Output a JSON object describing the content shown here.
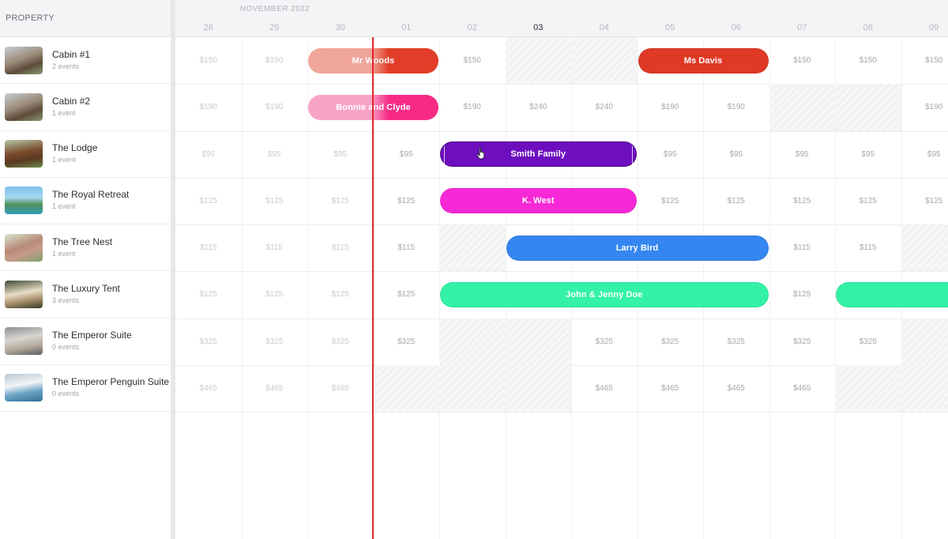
{
  "left_panel": {
    "header": "PROPERTY",
    "properties": [
      {
        "name": "Cabin #1",
        "events": "2 events",
        "thumb_icon": "cabin-photo"
      },
      {
        "name": "Cabin #2",
        "events": "1 event",
        "thumb_icon": "cabin-photo"
      },
      {
        "name": "The Lodge",
        "events": "1 event",
        "thumb_icon": "lodge-photo"
      },
      {
        "name": "The Royal Retreat",
        "events": "1 event",
        "thumb_icon": "beach-photo"
      },
      {
        "name": "The Tree Nest",
        "events": "1 event",
        "thumb_icon": "treehouse-photo"
      },
      {
        "name": "The Luxury Tent",
        "events": "3 events",
        "thumb_icon": "tent-photo"
      },
      {
        "name": "The Emperor Suite",
        "events": "0 events",
        "thumb_icon": "suite-photo"
      },
      {
        "name": "The Emperor Penguin Suite",
        "events": "0 events",
        "thumb_icon": "pool-photo"
      }
    ]
  },
  "timeline": {
    "month": "NOVEMBER 2022",
    "days": [
      "28",
      "29",
      "30",
      "01",
      "02",
      "03",
      "04",
      "05",
      "06",
      "07",
      "08",
      "09"
    ],
    "current_day": "03",
    "rows": [
      [
        "$150",
        "$150",
        "",
        "",
        "$150",
        "",
        "",
        "",
        "",
        "$150",
        "$150",
        "$150"
      ],
      [
        "$190",
        "$190",
        "",
        "",
        "$190",
        "$240",
        "$240",
        "$190",
        "$190",
        "",
        "",
        "$190"
      ],
      [
        "$95",
        "$95",
        "$95",
        "$95",
        "",
        "",
        "",
        "$95",
        "$95",
        "$95",
        "$95",
        "$95"
      ],
      [
        "$125",
        "$125",
        "$125",
        "$125",
        "",
        "",
        "",
        "$125",
        "$125",
        "$125",
        "$125",
        "$125"
      ],
      [
        "$115",
        "$115",
        "$115",
        "$115",
        "",
        "",
        "",
        "",
        "",
        "$115",
        "$115",
        ""
      ],
      [
        "$125",
        "$125",
        "$125",
        "$125",
        "",
        "",
        "",
        "",
        "",
        "$125",
        "",
        ""
      ],
      [
        "$325",
        "$325",
        "$325",
        "$325",
        "",
        "",
        "$325",
        "$325",
        "$325",
        "$325",
        "$325",
        ""
      ],
      [
        "$465",
        "$465",
        "$465",
        "",
        "",
        "",
        "$465",
        "$465",
        "$465",
        "$465",
        "",
        ""
      ]
    ],
    "blocked": [
      [
        0,
        5
      ],
      [
        0,
        6
      ],
      [
        1,
        9
      ],
      [
        1,
        10
      ],
      [
        4,
        4
      ],
      [
        4,
        11
      ],
      [
        6,
        4
      ],
      [
        6,
        5
      ],
      [
        6,
        11
      ],
      [
        7,
        3
      ],
      [
        7,
        4
      ],
      [
        7,
        5
      ],
      [
        7,
        10
      ],
      [
        7,
        11
      ]
    ],
    "events": [
      {
        "row": 0,
        "start_day": 2,
        "end_day": 3,
        "label": "Mr Woods",
        "color": "#e23d28",
        "fade_before": true
      },
      {
        "row": 0,
        "start_day": 7,
        "end_day": 8,
        "label": "Ms Davis",
        "color": "#e03a26"
      },
      {
        "row": 1,
        "start_day": 2,
        "end_day": 3,
        "label": "Bonnie and Clyde",
        "color": "#f72a84",
        "fade_before": true,
        "fade_color": "#f7a3c6"
      },
      {
        "row": 2,
        "start_day": 4,
        "end_day": 6,
        "label": "Smith Family",
        "color": "#6e0fbf",
        "selected": true
      },
      {
        "row": 3,
        "start_day": 4,
        "end_day": 6,
        "label": "K. West",
        "color": "#f728d6"
      },
      {
        "row": 4,
        "start_day": 5,
        "end_day": 8,
        "label": "Larry Bird",
        "color": "#3586f0"
      },
      {
        "row": 5,
        "start_day": 4,
        "end_day": 8,
        "label": "John & Jenny Doe",
        "color": "#33f2a7"
      },
      {
        "row": 5,
        "start_day": 10,
        "end_day": 11,
        "label": "",
        "color": "#33f2a7",
        "open_end": true
      }
    ]
  },
  "colors": {
    "now_line": "#e3262b",
    "faded_event": "#f0a69a"
  }
}
